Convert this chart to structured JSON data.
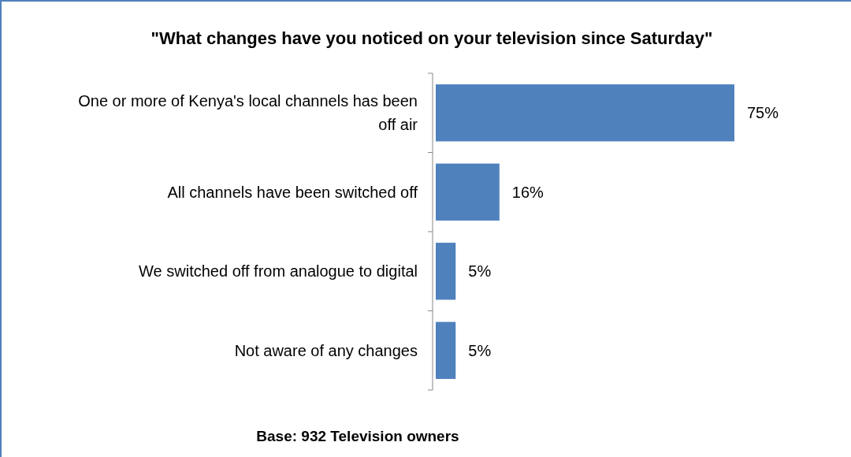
{
  "chart_data": {
    "type": "bar",
    "orientation": "horizontal",
    "title": "\"What changes have you noticed on your television since Saturday\"",
    "categories": [
      "One or more of Kenya's local channels has been off air",
      "All channels have been switched off",
      "We switched off from analogue to digital",
      "Not aware of any changes"
    ],
    "values": [
      75,
      16,
      5,
      5
    ],
    "value_labels": [
      "75%",
      "16%",
      "5%",
      "5%"
    ],
    "color": "#4f81bd",
    "tick_labels": "y",
    "annotations": [
      "Base: 932 Television owners"
    ]
  }
}
